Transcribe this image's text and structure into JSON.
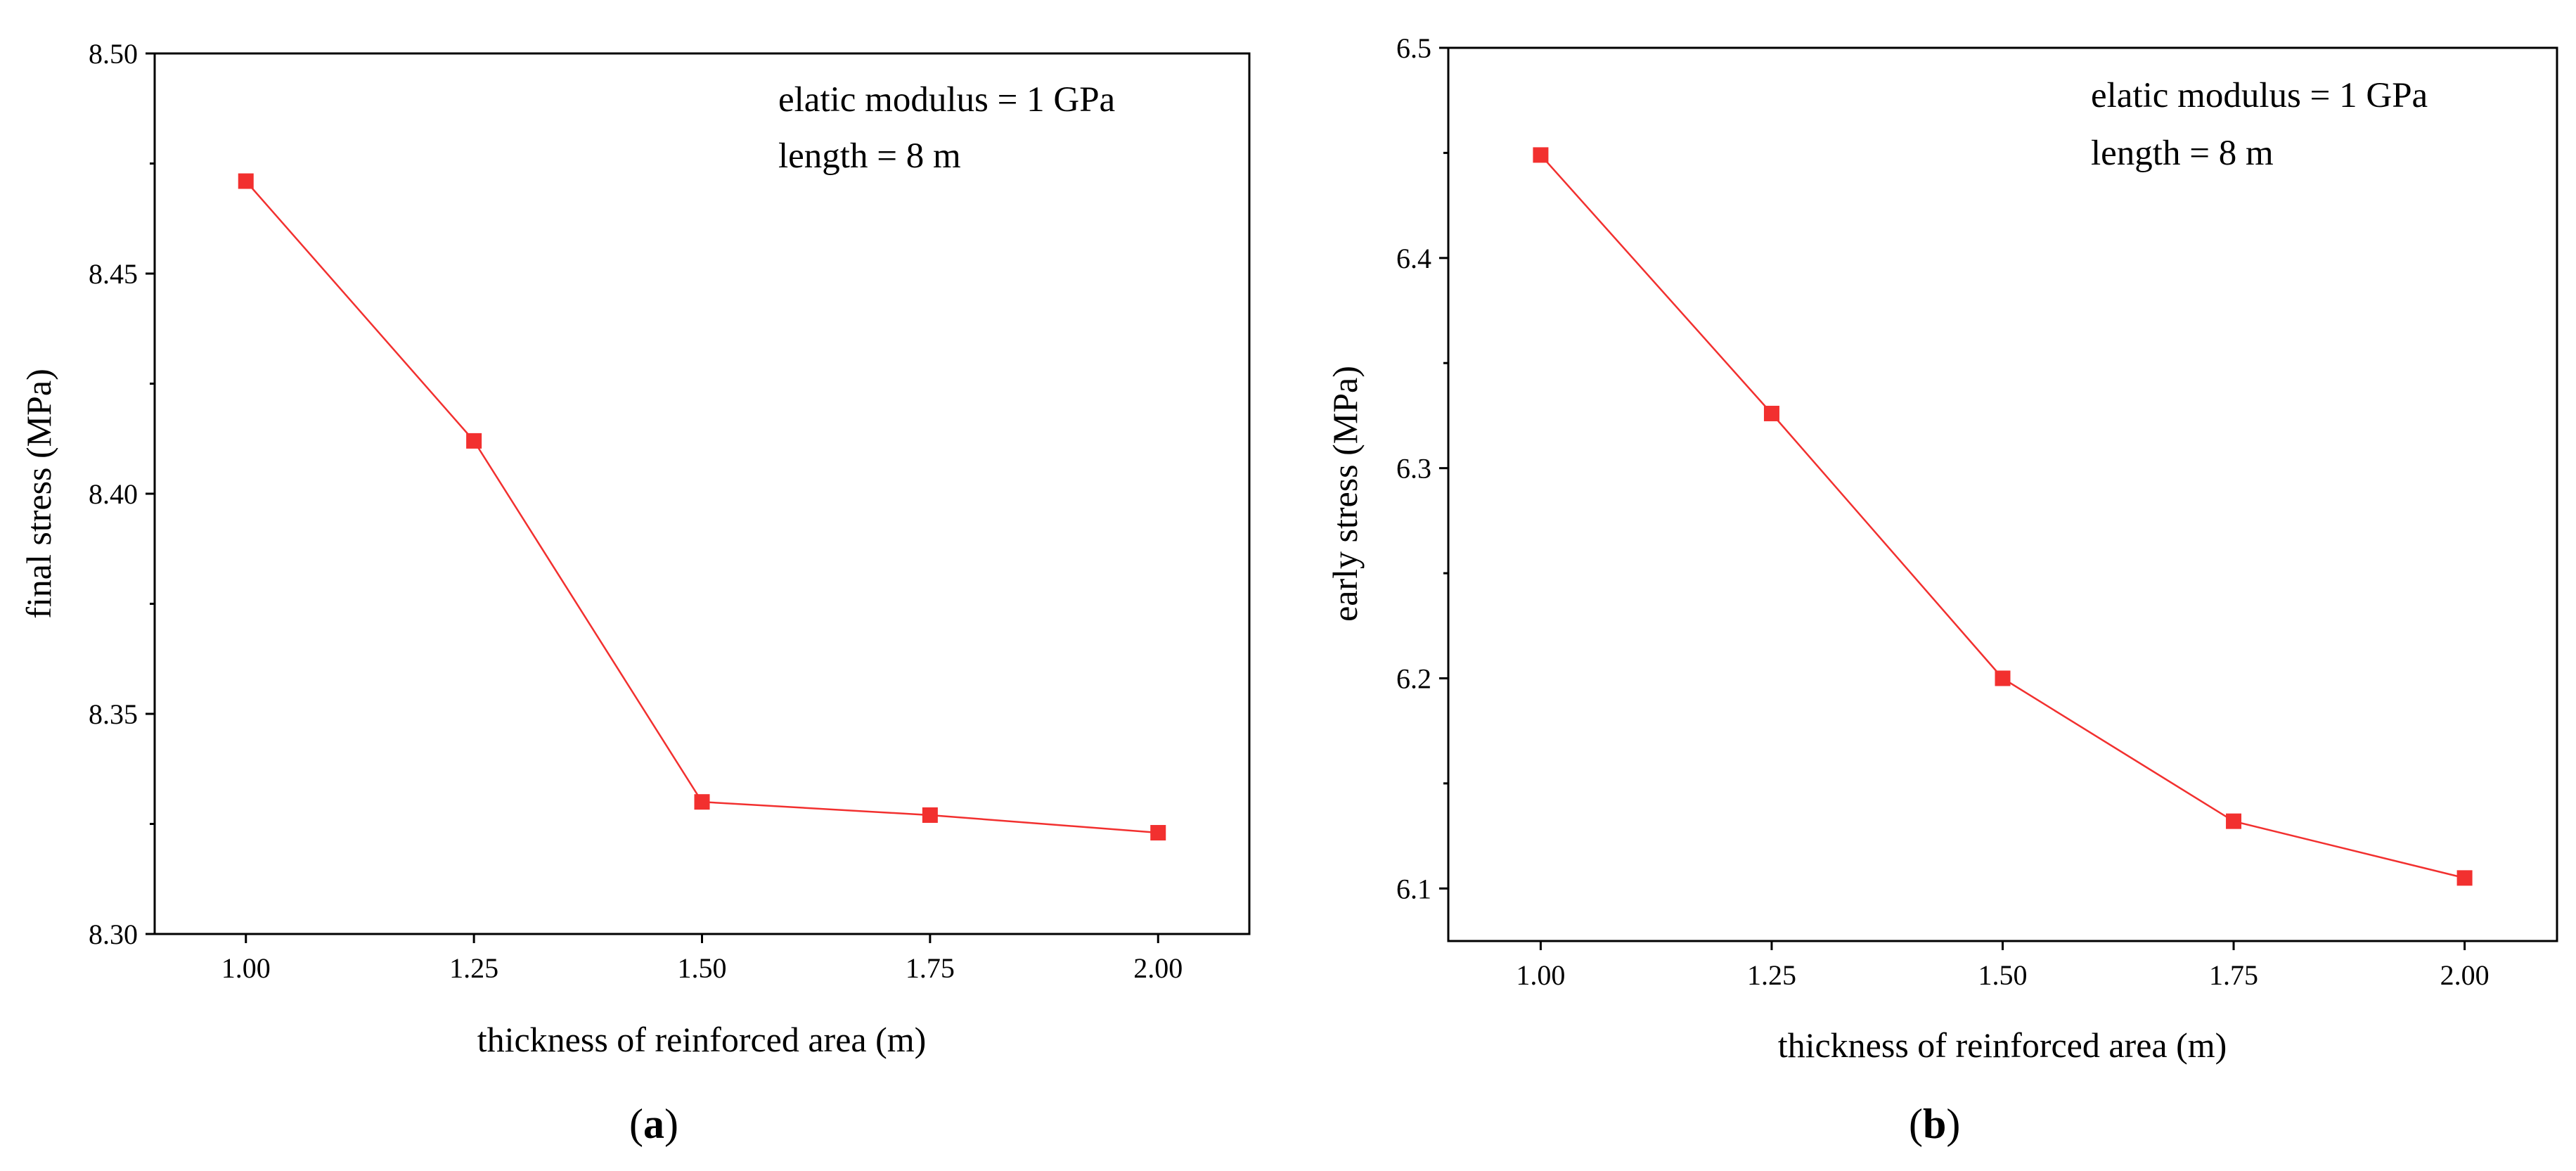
{
  "colors": {
    "series": "#f2302f",
    "axis": "#000000",
    "background": "#ffffff"
  },
  "chart_data": [
    {
      "type": "line",
      "panel_label": "a",
      "title": "",
      "xlabel": "thickness of reinforced area (m)",
      "ylabel": "final stress (MPa)",
      "xlim": [
        0.9,
        2.1
      ],
      "ylim": [
        8.3,
        8.5
      ],
      "xticks": [
        1.0,
        1.25,
        1.5,
        1.75,
        2.0
      ],
      "xtick_labels": [
        "1.00",
        "1.25",
        "1.50",
        "1.75",
        "2.00"
      ],
      "yticks": [
        8.3,
        8.35,
        8.4,
        8.45,
        8.5
      ],
      "ytick_labels": [
        "8.30",
        "8.35",
        "8.40",
        "8.45",
        "8.50"
      ],
      "series": [
        {
          "name": "final stress",
          "marker": "square",
          "x": [
            1.0,
            1.25,
            1.5,
            1.75,
            2.0
          ],
          "y": [
            8.471,
            8.412,
            8.33,
            8.327,
            8.323
          ]
        }
      ],
      "annotations": [
        "elatic modulus = 1 GPa",
        "length = 8 m"
      ],
      "grid": false,
      "legend": "none"
    },
    {
      "type": "line",
      "panel_label": "b",
      "title": "",
      "xlabel": "thickness of reinforced area (m)",
      "ylabel": "early stress (MPa)",
      "xlim": [
        0.9,
        2.1
      ],
      "ylim": [
        6.075,
        6.5
      ],
      "xticks": [
        1.0,
        1.25,
        1.5,
        1.75,
        2.0
      ],
      "xtick_labels": [
        "1.00",
        "1.25",
        "1.50",
        "1.75",
        "2.00"
      ],
      "yticks": [
        6.1,
        6.2,
        6.3,
        6.4,
        6.5
      ],
      "ytick_labels": [
        "6.1",
        "6.2",
        "6.3",
        "6.4",
        "6.5"
      ],
      "series": [
        {
          "name": "early stress",
          "marker": "square",
          "x": [
            1.0,
            1.25,
            1.5,
            1.75,
            2.0
          ],
          "y": [
            6.449,
            6.326,
            6.2,
            6.132,
            6.105
          ]
        }
      ],
      "annotations": [
        "elatic modulus = 1 GPa",
        "length = 8 m"
      ],
      "grid": false,
      "legend": "none"
    }
  ]
}
